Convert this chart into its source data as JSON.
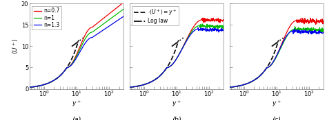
{
  "panels": [
    "(a)",
    "(b)",
    "(c)"
  ],
  "ylabel": "$\\langle U^+\\rangle$",
  "xlabel": "$y^+$",
  "ylim": [
    0,
    20
  ],
  "xlim_min": 0.35,
  "xlim_max": 280,
  "colors": {
    "n07": "#ee0000",
    "n1": "#00bb00",
    "n13": "#0000ee",
    "ref_black": "#111111"
  },
  "figsize": [
    4.74,
    1.75
  ],
  "dpi": 100,
  "lw_data": 0.9,
  "lw_ref": 1.3
}
